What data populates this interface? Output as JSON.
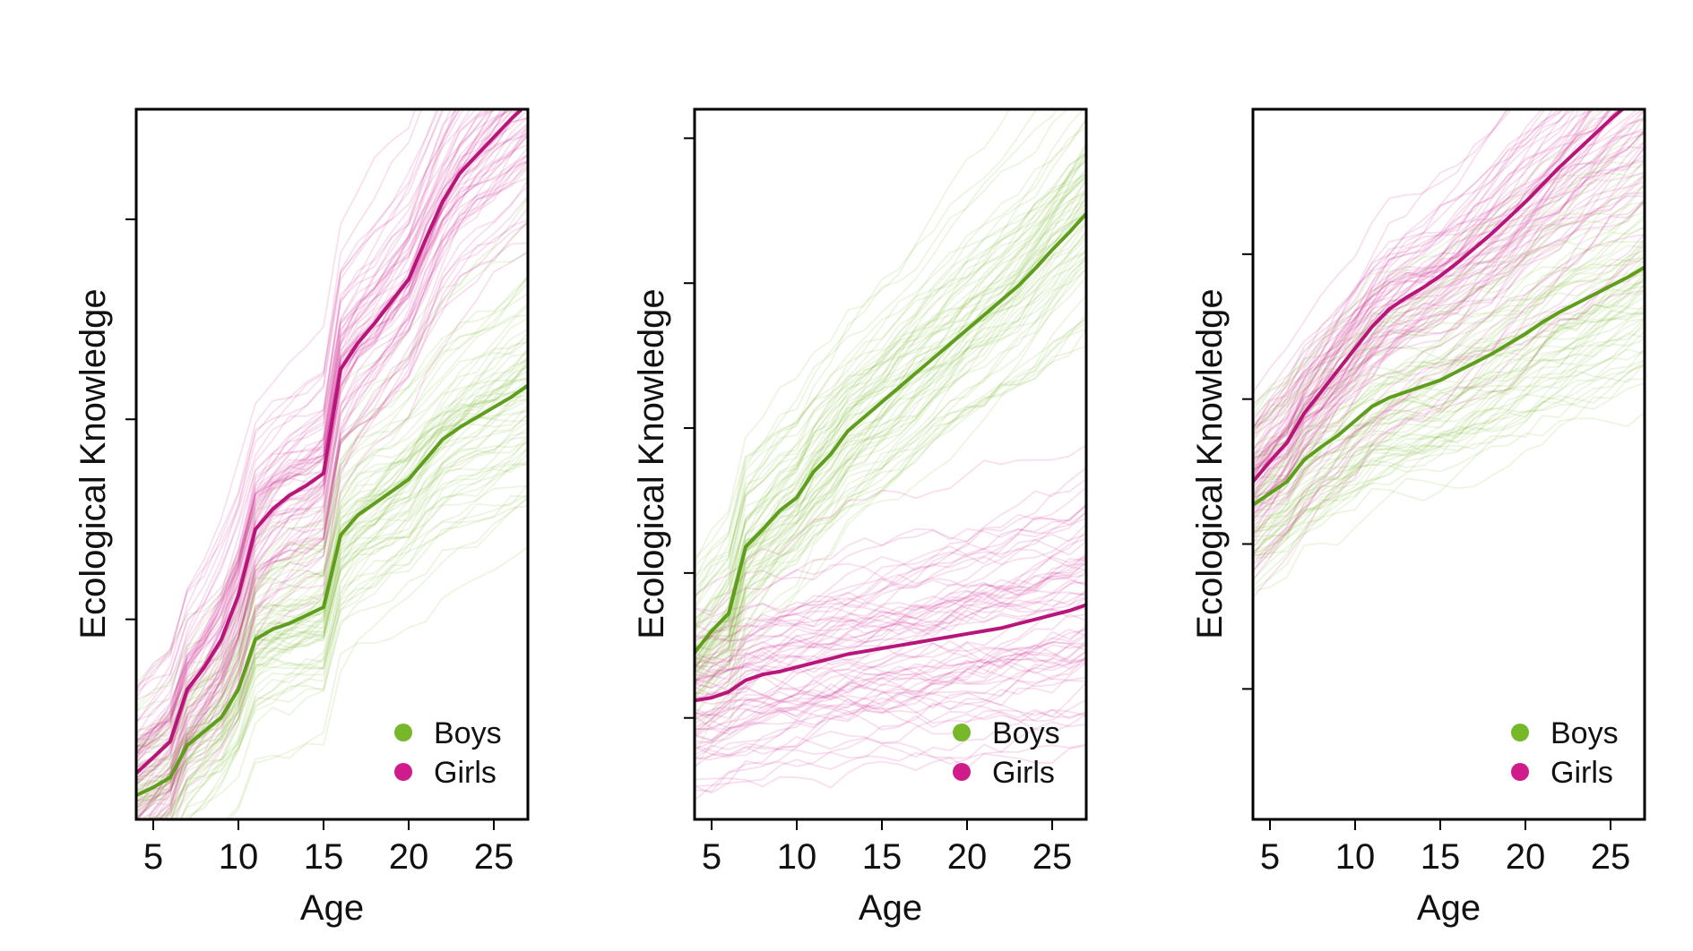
{
  "chart_data": [
    {
      "type": "line",
      "xlabel": "Age",
      "ylabel": "Ecological Knowledge",
      "xlim": [
        4,
        27
      ],
      "ylim": [
        -1.0,
        2.55
      ],
      "xticks": [
        5,
        10,
        15,
        20,
        25
      ],
      "yticks": [
        0,
        1,
        2
      ],
      "y_tick_labels_shown": false,
      "legend": {
        "placement": "bottom-right",
        "entries": [
          "Boys",
          "Girls"
        ]
      },
      "grid": false,
      "colors": {
        "Boys": "#76b82a",
        "Girls": "#d01c8b"
      },
      "series": [
        {
          "name": "Boys",
          "x": [
            4,
            5,
            6,
            7,
            8,
            9,
            10,
            11,
            12,
            13,
            14,
            15,
            16,
            17,
            18,
            19,
            20,
            21,
            22,
            23,
            24,
            25,
            26,
            27
          ],
          "y": [
            -0.88,
            -0.84,
            -0.79,
            -0.63,
            -0.56,
            -0.49,
            -0.35,
            -0.1,
            -0.05,
            -0.02,
            0.02,
            0.06,
            0.42,
            0.52,
            0.58,
            0.64,
            0.7,
            0.8,
            0.9,
            0.96,
            1.01,
            1.06,
            1.11,
            1.17
          ]
        },
        {
          "name": "Girls",
          "x": [
            4,
            5,
            6,
            7,
            8,
            9,
            10,
            11,
            12,
            13,
            14,
            15,
            16,
            17,
            18,
            19,
            20,
            21,
            22,
            23,
            24,
            25,
            26,
            27
          ],
          "y": [
            -0.77,
            -0.69,
            -0.61,
            -0.35,
            -0.24,
            -0.1,
            0.12,
            0.45,
            0.55,
            0.62,
            0.67,
            0.73,
            1.25,
            1.38,
            1.48,
            1.59,
            1.7,
            1.9,
            2.09,
            2.23,
            2.32,
            2.41,
            2.5,
            2.58
          ]
        }
      ]
    },
    {
      "type": "line",
      "xlabel": "Age",
      "ylabel": "Ecological Knowledge",
      "xlim": [
        4,
        27
      ],
      "ylim": [
        -1.7,
        3.2
      ],
      "xticks": [
        5,
        10,
        15,
        20,
        25
      ],
      "yticks": [
        -1,
        0,
        1,
        2,
        3
      ],
      "y_tick_labels_shown": false,
      "legend": {
        "placement": "bottom-right",
        "entries": [
          "Boys",
          "Girls"
        ]
      },
      "grid": false,
      "colors": {
        "Boys": "#76b82a",
        "Girls": "#d01c8b"
      },
      "series": [
        {
          "name": "Boys",
          "x": [
            4,
            5,
            6,
            7,
            8,
            9,
            10,
            11,
            12,
            13,
            14,
            15,
            16,
            17,
            18,
            19,
            20,
            21,
            22,
            23,
            24,
            25,
            26,
            27
          ],
          "y": [
            -0.55,
            -0.4,
            -0.28,
            0.18,
            0.3,
            0.43,
            0.52,
            0.7,
            0.82,
            0.98,
            1.08,
            1.18,
            1.28,
            1.38,
            1.48,
            1.58,
            1.68,
            1.78,
            1.88,
            1.98,
            2.1,
            2.23,
            2.35,
            2.48
          ]
        },
        {
          "name": "Girls",
          "x": [
            4,
            5,
            6,
            7,
            8,
            9,
            10,
            11,
            12,
            13,
            14,
            15,
            16,
            17,
            18,
            19,
            20,
            21,
            22,
            23,
            24,
            25,
            26,
            27
          ],
          "y": [
            -0.88,
            -0.86,
            -0.82,
            -0.74,
            -0.7,
            -0.68,
            -0.65,
            -0.62,
            -0.59,
            -0.56,
            -0.54,
            -0.52,
            -0.5,
            -0.48,
            -0.46,
            -0.44,
            -0.42,
            -0.4,
            -0.38,
            -0.35,
            -0.32,
            -0.29,
            -0.26,
            -0.22
          ]
        }
      ]
    },
    {
      "type": "line",
      "xlabel": "Age",
      "ylabel": "Ecological Knowledge",
      "xlim": [
        4,
        27
      ],
      "ylim": [
        -1.9,
        3.0
      ],
      "xticks": [
        5,
        10,
        15,
        20,
        25
      ],
      "yticks": [
        -1,
        0,
        1,
        2
      ],
      "y_tick_labels_shown": false,
      "legend": {
        "placement": "bottom-right",
        "entries": [
          "Boys",
          "Girls"
        ]
      },
      "grid": false,
      "colors": {
        "Boys": "#76b82a",
        "Girls": "#d01c8b"
      },
      "series": [
        {
          "name": "Boys",
          "x": [
            4,
            5,
            6,
            7,
            8,
            9,
            10,
            11,
            12,
            13,
            14,
            15,
            16,
            17,
            18,
            19,
            20,
            21,
            22,
            23,
            24,
            25,
            26,
            27
          ],
          "y": [
            0.27,
            0.35,
            0.43,
            0.58,
            0.67,
            0.75,
            0.85,
            0.95,
            1.01,
            1.05,
            1.09,
            1.13,
            1.19,
            1.25,
            1.31,
            1.38,
            1.45,
            1.53,
            1.6,
            1.66,
            1.72,
            1.78,
            1.84,
            1.91
          ]
        },
        {
          "name": "Girls",
          "x": [
            4,
            5,
            6,
            7,
            8,
            9,
            10,
            11,
            12,
            13,
            14,
            15,
            16,
            17,
            18,
            19,
            20,
            21,
            22,
            23,
            24,
            25,
            26,
            27
          ],
          "y": [
            0.43,
            0.57,
            0.7,
            0.9,
            1.05,
            1.2,
            1.35,
            1.5,
            1.62,
            1.7,
            1.77,
            1.85,
            1.94,
            2.04,
            2.14,
            2.25,
            2.36,
            2.48,
            2.6,
            2.71,
            2.82,
            2.93,
            3.03,
            3.13
          ]
        }
      ]
    }
  ]
}
